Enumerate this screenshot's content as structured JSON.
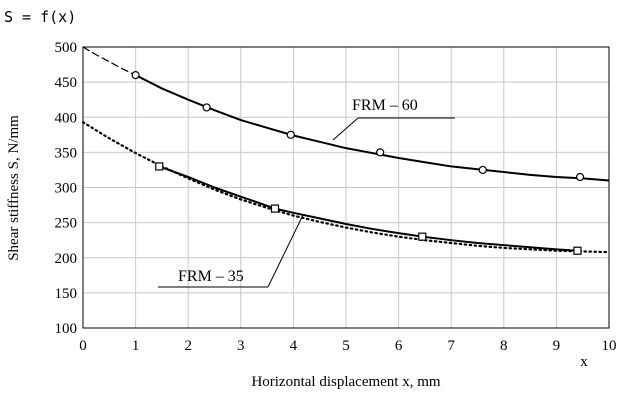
{
  "chart_data": {
    "type": "line",
    "title": "S = f(x)",
    "xlabel": "Horizontal displacement x, mm",
    "ylabel": "Shear stiffness S, N/mm",
    "x_axis_var": "x",
    "xlim": [
      0,
      10
    ],
    "ylim": [
      100,
      500
    ],
    "x_ticks": [
      0,
      1,
      2,
      3,
      4,
      5,
      6,
      7,
      8,
      9,
      10
    ],
    "y_ticks": [
      100,
      150,
      200,
      250,
      300,
      350,
      400,
      450,
      500
    ],
    "grid": true,
    "series": [
      {
        "name": "FRM – 60",
        "color": "#000000",
        "marker": "circle",
        "points": [
          {
            "x": 1.0,
            "y": 460
          },
          {
            "x": 2.35,
            "y": 414
          },
          {
            "x": 3.95,
            "y": 375
          },
          {
            "x": 5.65,
            "y": 350
          },
          {
            "x": 7.6,
            "y": 325
          },
          {
            "x": 9.45,
            "y": 315
          }
        ],
        "curve_x": [
          1.0,
          1.5,
          2.0,
          2.5,
          3.0,
          3.5,
          4.0,
          4.5,
          5.0,
          5.5,
          6.0,
          6.5,
          7.0,
          7.5,
          8.0,
          8.5,
          9.0,
          9.5,
          10.0
        ],
        "curve_y": [
          460,
          441,
          425,
          410,
          396,
          385,
          374,
          365,
          356,
          349,
          342,
          336,
          330,
          326,
          322,
          318,
          315,
          313,
          310
        ],
        "fit_x": [
          0.0,
          0.25,
          0.5,
          0.75,
          1.0
        ],
        "fit_y": [
          500,
          489,
          479,
          469,
          460
        ]
      },
      {
        "name": "FRM – 35",
        "color": "#000000",
        "marker": "square",
        "points": [
          {
            "x": 1.45,
            "y": 330
          },
          {
            "x": 3.65,
            "y": 270
          },
          {
            "x": 6.45,
            "y": 230
          },
          {
            "x": 9.4,
            "y": 210
          }
        ],
        "curve_x": [
          1.45,
          2.0,
          2.5,
          3.0,
          3.65,
          4.0,
          4.5,
          5.0,
          5.5,
          6.0,
          6.45,
          7.0,
          7.5,
          8.0,
          8.5,
          9.0,
          9.4
        ],
        "curve_y": [
          330,
          315,
          300,
          287,
          270,
          264,
          256,
          248,
          241,
          235,
          230,
          225,
          221,
          218,
          215,
          212,
          210
        ],
        "fit_x": [
          0.0,
          0.5,
          1.0,
          1.5,
          2.0,
          2.5,
          3.0,
          3.5,
          4.0,
          4.5,
          5.0,
          5.5,
          6.0,
          6.5,
          7.0,
          7.5,
          8.0,
          8.5,
          9.0,
          9.5,
          10.0
        ],
        "fit_y": [
          393,
          370,
          349,
          330,
          313,
          297,
          283,
          271,
          260,
          251,
          243,
          236,
          230,
          225,
          221,
          217,
          214,
          212,
          210,
          209,
          208
        ]
      }
    ],
    "annotations": [
      {
        "text": "FRM – 60",
        "series": 0
      },
      {
        "text": "FRM – 35",
        "series": 1
      }
    ]
  }
}
